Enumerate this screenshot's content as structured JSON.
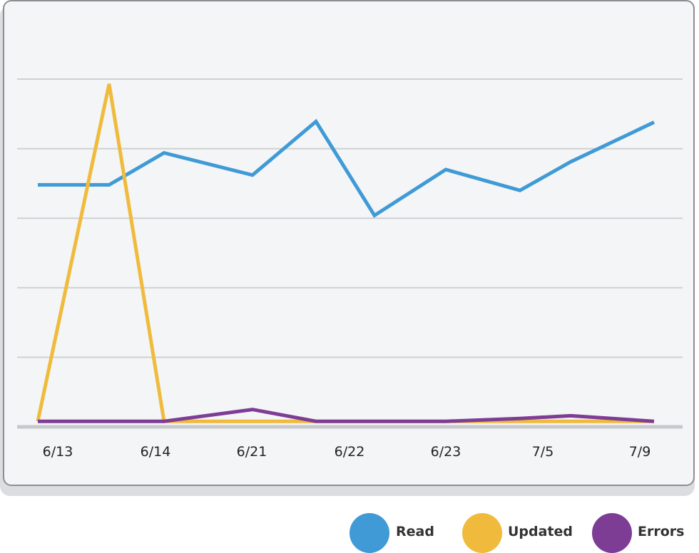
{
  "chart_data": {
    "type": "line",
    "categories": [
      "6/13",
      "",
      "6/14",
      "6/21",
      "",
      "6/22",
      "6/23",
      "7/5",
      "",
      "7/9"
    ],
    "x_tick_labels": [
      "6/13",
      "6/14",
      "6/21",
      "6/22",
      "6/23",
      "7/5",
      "7/9"
    ],
    "ylim": [
      0,
      100
    ],
    "grid": true,
    "legend_position": "bottom-right",
    "series": [
      {
        "name": "Read",
        "color": "#3f9ad6",
        "values": [
          69.6,
          69.6,
          78.8,
          72.4,
          87.8,
          60.8,
          74.0,
          68.0,
          76.2,
          87.6
        ]
      },
      {
        "name": "Updated",
        "color": "#f0bb3d",
        "values": [
          1.6,
          98.6,
          1.6,
          1.6,
          1.6,
          1.6,
          1.6,
          1.6,
          1.6,
          1.6
        ]
      },
      {
        "name": "Errors",
        "color": "#7e3d95",
        "values": [
          1.6,
          1.6,
          1.6,
          5.0,
          1.6,
          1.6,
          1.6,
          2.4,
          3.2,
          1.6
        ]
      }
    ]
  }
}
